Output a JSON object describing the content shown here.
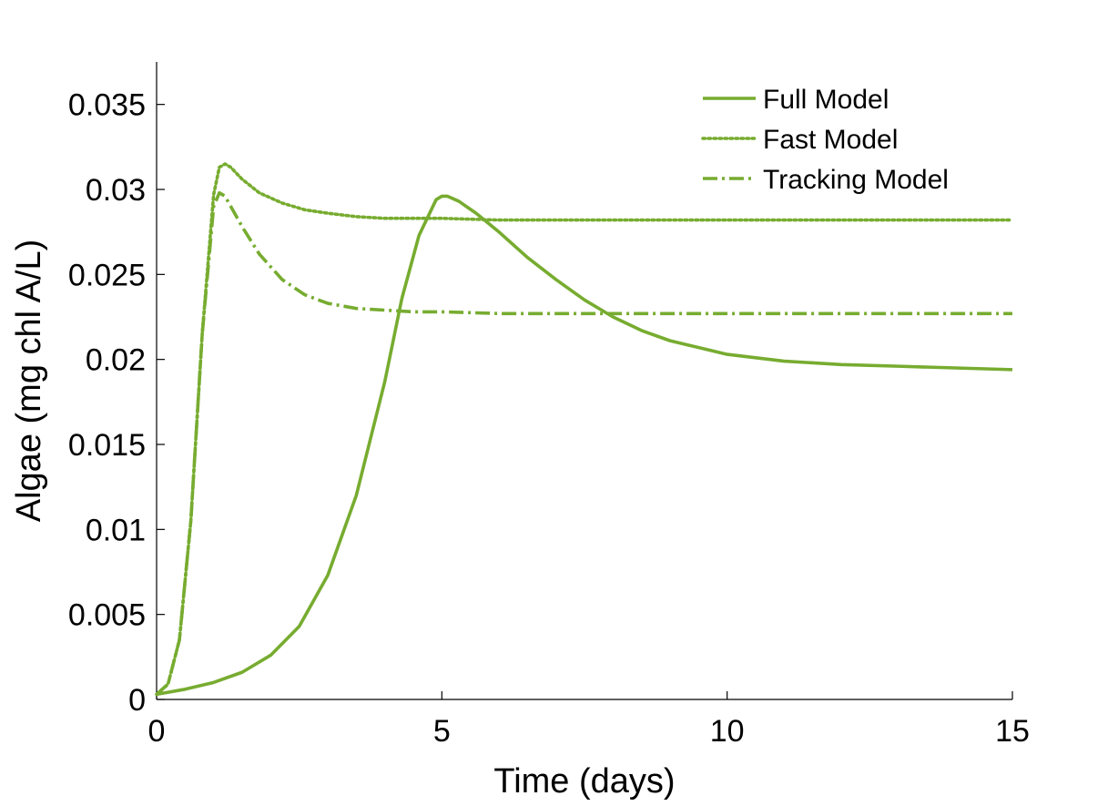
{
  "chart_data": {
    "type": "line",
    "title": "",
    "xlabel": "Time (days)",
    "ylabel": "Algae (mg chl A/L)",
    "xlim": [
      0,
      15
    ],
    "ylim": [
      0,
      0.0375
    ],
    "xticks": [
      0,
      5,
      10,
      15
    ],
    "xtick_labels": [
      "0",
      "5",
      "10",
      "15"
    ],
    "yticks": [
      0,
      0.005,
      0.01,
      0.015,
      0.02,
      0.025,
      0.03,
      0.035
    ],
    "ytick_labels": [
      "0",
      "0.005",
      "0.01",
      "0.015",
      "0.02",
      "0.025",
      "0.03",
      "0.035"
    ],
    "grid": false,
    "legend_position": "top-right",
    "series": [
      {
        "name": "Full Model",
        "color": "#77AC30",
        "dash": "solid",
        "x": [
          0,
          0.5,
          1.0,
          1.5,
          2.0,
          2.5,
          3.0,
          3.5,
          4.0,
          4.3,
          4.6,
          4.9,
          5.0,
          5.1,
          5.3,
          5.6,
          6.0,
          6.5,
          7.0,
          7.5,
          8.0,
          8.5,
          9.0,
          10.0,
          11.0,
          12.0,
          13.0,
          14.0,
          15.0
        ],
        "y": [
          0.0003,
          0.0006,
          0.001,
          0.0016,
          0.0026,
          0.0043,
          0.0073,
          0.012,
          0.0187,
          0.0236,
          0.0273,
          0.0294,
          0.0296,
          0.0296,
          0.0293,
          0.0286,
          0.0275,
          0.026,
          0.0247,
          0.0235,
          0.0225,
          0.0217,
          0.0211,
          0.0203,
          0.0199,
          0.0197,
          0.0196,
          0.0195,
          0.0194
        ]
      },
      {
        "name": "Fast Model",
        "color": "#77AC30",
        "dash": "dotted",
        "x": [
          0,
          0.2,
          0.4,
          0.6,
          0.8,
          1.0,
          1.1,
          1.2,
          1.3,
          1.5,
          1.8,
          2.2,
          2.6,
          3.0,
          3.5,
          4.0,
          5.0,
          6.0,
          7.0,
          8.0,
          10.0,
          12.0,
          15.0
        ],
        "y": [
          0.0003,
          0.0009,
          0.0035,
          0.0105,
          0.0215,
          0.0297,
          0.0313,
          0.0315,
          0.0313,
          0.0306,
          0.0298,
          0.0292,
          0.0288,
          0.0286,
          0.0284,
          0.0283,
          0.0283,
          0.0282,
          0.0282,
          0.0282,
          0.0282,
          0.0282,
          0.0282
        ]
      },
      {
        "name": "Tracking Model",
        "color": "#77AC30",
        "dash": "dash-dot",
        "x": [
          0,
          0.2,
          0.4,
          0.6,
          0.8,
          1.0,
          1.1,
          1.2,
          1.3,
          1.5,
          1.8,
          2.2,
          2.6,
          3.0,
          3.5,
          4.0,
          4.5,
          5.0,
          6.0,
          7.0,
          8.0,
          10.0,
          12.0,
          15.0
        ],
        "y": [
          0.0003,
          0.0009,
          0.0035,
          0.0105,
          0.0215,
          0.029,
          0.0298,
          0.0296,
          0.029,
          0.0278,
          0.0262,
          0.0247,
          0.0238,
          0.0233,
          0.023,
          0.0229,
          0.0228,
          0.0228,
          0.0227,
          0.0227,
          0.0227,
          0.0227,
          0.0227,
          0.0227
        ]
      }
    ]
  }
}
